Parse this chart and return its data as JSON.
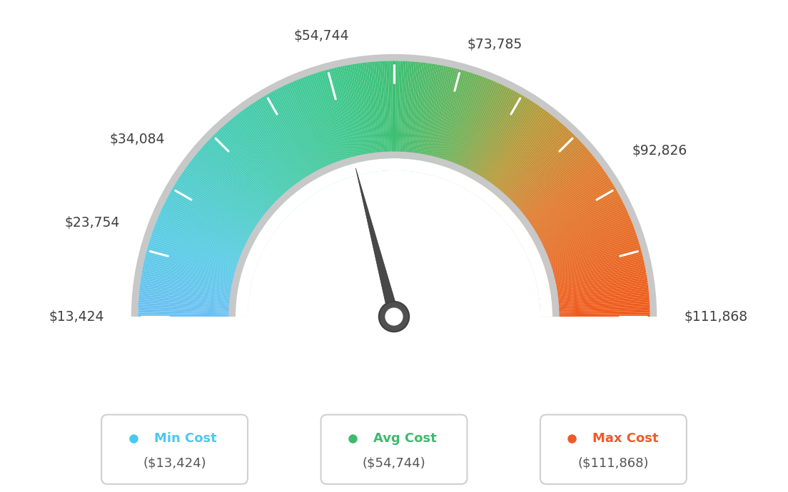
{
  "min_val": 13424,
  "max_val": 111868,
  "avg_val": 54744,
  "label_values": [
    13424,
    23754,
    34084,
    54744,
    73785,
    92826,
    111868
  ],
  "label_strings": [
    "$13,424",
    "$23,754",
    "$34,084",
    "$54,744",
    "$73,785",
    "$92,826",
    "$111,868"
  ],
  "min_cost_label": "Min Cost",
  "avg_cost_label": "Avg Cost",
  "max_cost_label": "Max Cost",
  "min_cost_value": "($13,424)",
  "avg_cost_value": "($54,744)",
  "max_cost_value": "($111,868)",
  "min_color": "#4dc8f0",
  "avg_color": "#3dba6e",
  "max_color": "#f05a28",
  "background_color": "#ffffff",
  "needle_color": "#444444",
  "tick_color": "#ffffff",
  "colors_gradient": [
    [
      0.0,
      [
        0.42,
        0.75,
        0.95
      ]
    ],
    [
      0.1,
      [
        0.35,
        0.8,
        0.9
      ]
    ],
    [
      0.25,
      [
        0.28,
        0.8,
        0.72
      ]
    ],
    [
      0.42,
      [
        0.24,
        0.78,
        0.55
      ]
    ],
    [
      0.5,
      [
        0.24,
        0.75,
        0.45
      ]
    ],
    [
      0.6,
      [
        0.42,
        0.7,
        0.35
      ]
    ],
    [
      0.7,
      [
        0.72,
        0.6,
        0.22
      ]
    ],
    [
      0.8,
      [
        0.88,
        0.48,
        0.18
      ]
    ],
    [
      1.0,
      [
        0.94,
        0.35,
        0.1
      ]
    ]
  ]
}
